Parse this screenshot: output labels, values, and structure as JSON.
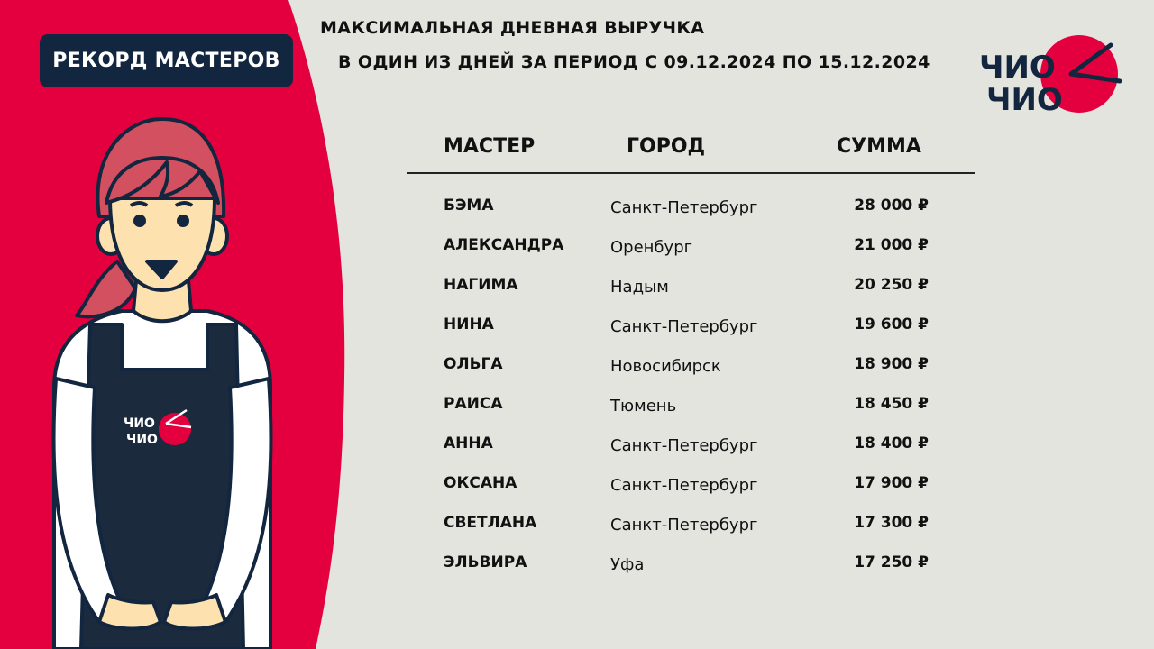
{
  "badge": "РЕКОРД МАСТЕРОВ",
  "title_line1": "МАКСИМАЛЬНАЯ ДНЕВНАЯ ВЫРУЧКА",
  "title_line2": "В ОДИН ИЗ ДНЕЙ ЗА ПЕРИОД  С 09.12.2024 ПО 15.12.2024",
  "logo": {
    "line1": "ЧИО",
    "line2": "ЧИО"
  },
  "colors": {
    "brand_red": "#e4003e",
    "navy": "#13263f",
    "background": "#e4e4df"
  },
  "table": {
    "headers": [
      "МАСТЕР",
      "ГОРОД",
      "СУММА"
    ],
    "rows": [
      {
        "name": "БЭМА",
        "city": "Санкт-Петербург",
        "sum": "28 000 ₽"
      },
      {
        "name": "АЛЕКСАНДРА",
        "city": "Оренбург",
        "sum": "21 000 ₽"
      },
      {
        "name": "НАГИМА",
        "city": "Надым",
        "sum": "20 250 ₽"
      },
      {
        "name": "НИНА",
        "city": "Санкт-Петербург",
        "sum": "19 600 ₽"
      },
      {
        "name": "ОЛЬГА",
        "city": "Новосибирск",
        "sum": "18 900 ₽"
      },
      {
        "name": "РАИСА",
        "city": "Тюмень",
        "sum": "18 450 ₽"
      },
      {
        "name": "АННА",
        "city": "Санкт-Петербург",
        "sum": "18 400 ₽"
      },
      {
        "name": "ОКСАНА",
        "city": "Санкт-Петербург",
        "sum": "17 900 ₽"
      },
      {
        "name": "СВЕТЛАНА",
        "city": "Санкт-Петербург",
        "sum": "17 300 ₽"
      },
      {
        "name": "ЭЛЬВИРА",
        "city": "Уфа",
        "sum": "17 250 ₽"
      }
    ]
  }
}
